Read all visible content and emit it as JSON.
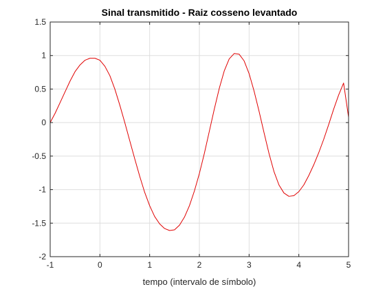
{
  "chart_data": {
    "type": "line",
    "title": "Sinal transmitido - Raiz cosseno levantado",
    "xlabel": "tempo (intervalo de símbolo)",
    "ylabel": "",
    "xlim": [
      -1,
      5
    ],
    "ylim": [
      -2,
      1.5
    ],
    "xticks": [
      -1,
      0,
      1,
      2,
      3,
      4,
      5
    ],
    "xtick_labels": [
      "-1",
      "0",
      "1",
      "2",
      "3",
      "4",
      "5"
    ],
    "yticks": [
      -2,
      -1.5,
      -1,
      -0.5,
      0,
      0.5,
      1,
      1.5
    ],
    "ytick_labels": [
      "-2",
      "-1.5",
      "-1",
      "-0.5",
      "0",
      "0.5",
      "1",
      "1.5"
    ],
    "grid": true,
    "legend": false,
    "colors": {
      "line": "#e00000",
      "grid": "#dedede",
      "axis": "#262626"
    },
    "series": [
      {
        "x": [
          -1,
          -0.9,
          -0.8,
          -0.7,
          -0.6,
          -0.5,
          -0.4,
          -0.3,
          -0.2,
          -0.1,
          0,
          0.1,
          0.2,
          0.3,
          0.4,
          0.5,
          0.6,
          0.7,
          0.8,
          0.9,
          1,
          1.1,
          1.2,
          1.3,
          1.4,
          1.5,
          1.6,
          1.7,
          1.8,
          1.9,
          2,
          2.1,
          2.2,
          2.3,
          2.4,
          2.5,
          2.6,
          2.7,
          2.8,
          2.9,
          3,
          3.1,
          3.2,
          3.3,
          3.4,
          3.5,
          3.6,
          3.7,
          3.8,
          3.9,
          4,
          4.1,
          4.2,
          4.3,
          4.4,
          4.5,
          4.6,
          4.7,
          4.8,
          4.9,
          5
        ],
        "y": [
          0,
          0.14,
          0.3,
          0.46,
          0.62,
          0.76,
          0.86,
          0.93,
          0.96,
          0.96,
          0.93,
          0.84,
          0.7,
          0.5,
          0.26,
          0,
          -0.27,
          -0.54,
          -0.8,
          -1.04,
          -1.24,
          -1.4,
          -1.51,
          -1.58,
          -1.61,
          -1.6,
          -1.53,
          -1.41,
          -1.24,
          -1.02,
          -0.76,
          -0.46,
          -0.13,
          0.2,
          0.51,
          0.77,
          0.95,
          1.03,
          1.02,
          0.92,
          0.73,
          0.47,
          0.17,
          -0.15,
          -0.46,
          -0.73,
          -0.93,
          -1.05,
          -1.1,
          -1.09,
          -1.03,
          -0.93,
          -0.79,
          -0.63,
          -0.45,
          -0.25,
          -0.03,
          0.2,
          0.41,
          0.59,
          0.08
        ]
      }
    ]
  }
}
